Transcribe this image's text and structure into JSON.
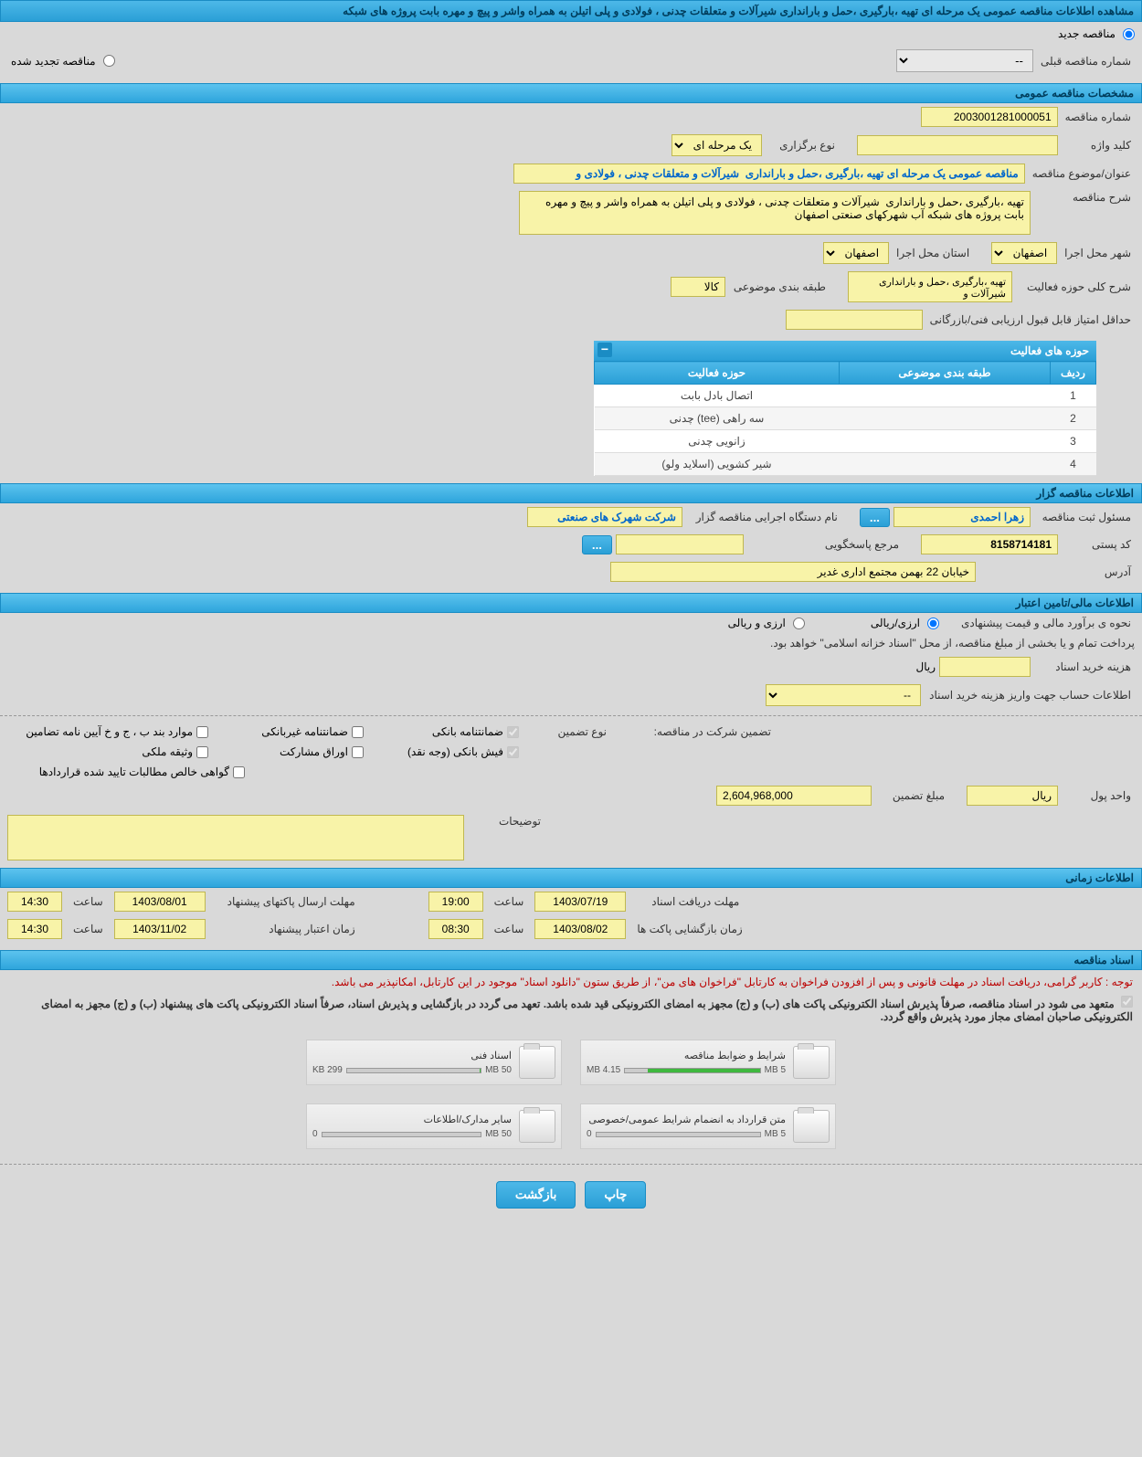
{
  "page_title": "مشاهده اطلاعات مناقصه عمومی یک مرحله ای تهیه ،بارگیری ،حمل و بارانداری شیرآلات و متعلقات چدنی ، فولادی و پلی اتیلن به همراه واشر و پیچ و مهره بابت پروژه های شبکه",
  "tender_type": {
    "new": "مناقصه جدید",
    "renewed": "مناقصه تجدید شده",
    "prev_number_label": "شماره مناقصه قبلی",
    "prev_number_value": "--"
  },
  "sections": {
    "general": "مشخصات مناقصه عمومی",
    "organizer": "اطلاعات مناقصه گزار",
    "financial": "اطلاعات مالی/تامین اعتبار",
    "time": "اطلاعات زمانی",
    "docs": "اسناد مناقصه"
  },
  "general": {
    "tender_no_label": "شماره مناقصه",
    "tender_no": "2003001281000051",
    "type_label": "نوع برگزاری",
    "type": "یک مرحله ای",
    "keyword_label": "کلید واژه",
    "keyword": "",
    "subject_label": "عنوان/موضوع مناقصه",
    "subject": "مناقصه عمومی یک مرحله ای تهیه ،بارگیری ،حمل و بارانداری  شیرآلات و متعلقات چدنی ، فولادی و",
    "desc_label": "شرح مناقصه",
    "desc": "تهیه ،بارگیری ،حمل و بارانداری  شیرآلات و متعلقات چدنی ، فولادی و پلی اتیلن به همراه واشر و پیچ و مهره بابت پروژه های شبکه آب شهرکهای صنعتی اصفهان",
    "province_label": "استان محل اجرا",
    "province": "اصفهان",
    "city_label": "شهر محل اجرا",
    "city": "اصفهان",
    "class_label": "طبقه بندی موضوعی",
    "class": "کالا",
    "activity_desc_label": "شرح کلی حوزه فعالیت",
    "activity_desc": "تهیه ،بارگیری ،حمل و بارانداری  شیرآلات و",
    "min_score_label": "حداقل امتیاز قابل قبول ارزیابی فنی/بازرگانی",
    "min_score": ""
  },
  "activity_table": {
    "title": "حوزه های فعالیت",
    "col_row": "ردیف",
    "col_class": "طبقه بندی موضوعی",
    "col_activity": "حوزه فعالیت",
    "rows": [
      {
        "n": "1",
        "c": "",
        "a": "اتصال بادل بابت"
      },
      {
        "n": "2",
        "c": "",
        "a": "سه راهی (tee) چدنی"
      },
      {
        "n": "3",
        "c": "",
        "a": "زانویی چدنی"
      },
      {
        "n": "4",
        "c": "",
        "a": "شیر کشویی (اسلاید ولو)"
      }
    ]
  },
  "organizer": {
    "org_label": "نام دستگاه اجرایی مناقصه گزار",
    "org": "شرکت شهرک های صنعتی",
    "resp_label": "مسئول ثبت مناقصه",
    "resp": "زهرا احمدی",
    "contact_label": "مرجع پاسخگویی",
    "contact": "",
    "postal_label": "کد پستی",
    "postal": "8158714181",
    "address_label": "آدرس",
    "address": "خیابان 22 بهمن مجتمع اداری غدیر"
  },
  "financial": {
    "estimate_label": "نحوه ی برآورد مالی و قیمت پیشنهادی",
    "opt_currency": "ارزی/ریالی",
    "opt_rial": "ارزی و ریالی",
    "payment_note": "پرداخت تمام و یا بخشی از مبلغ مناقصه، از محل \"اسناد خزانه اسلامی\" خواهد بود.",
    "doc_fee_label": "هزینه خرید اسناد",
    "doc_fee": "",
    "currency": "ریال",
    "account_label": "اطلاعات حساب جهت واریز هزینه خرید اسناد",
    "account": "--",
    "guarantee_type_label": "تضمین شرکت در مناقصه:",
    "guarantee_type_sublabel": "نوع تضمین",
    "guarantees": {
      "bank": "ضمانتنامه بانکی",
      "nonbank": "ضمانتنامه غیربانکی",
      "bond": "موارد بند ب ، ج و خ آیین نامه تضامین",
      "cash": "فیش بانکی (وجه نقد)",
      "securities": "اوراق مشارکت",
      "property": "وثیقه ملکی",
      "cert": "گواهی خالص مطالبات تایید شده قراردادها"
    },
    "guarantee_amount_label": "مبلغ تضمین",
    "guarantee_amount": "2,604,968,000",
    "unit_label": "واحد پول",
    "unit": "ریال",
    "notes_label": "توضیحات",
    "notes": ""
  },
  "time": {
    "receive_label": "مهلت دریافت اسناد",
    "receive_date": "1403/07/19",
    "receive_time": "19:00",
    "send_label": "مهلت ارسال پاکتهای پیشنهاد",
    "send_date": "1403/08/01",
    "send_time": "14:30",
    "open_label": "زمان بازگشایی پاکت ها",
    "open_date": "1403/08/02",
    "open_time": "08:30",
    "valid_label": "زمان اعتبار پیشنهاد",
    "valid_date": "1403/11/02",
    "valid_time": "14:30",
    "time_label": "ساعت"
  },
  "docs": {
    "notice": "توجه : کاربر گرامی، دریافت اسناد در مهلت قانونی و پس از افزودن فراخوان به کارتابل \"فراخوان های من\"، از طریق ستون \"دانلود اسناد\" موجود در این کارتابل، امکانپذیر می باشد.",
    "commit": "متعهد می شود در اسناد مناقصه، صرفاً پذیرش اسناد الکترونیکی پاکت های (ب) و (ج) مجهز به امضای الکترونیکی قید شده باشد. تعهد می گردد در بازگشایی و پذیرش اسناد، صرفاً اسناد الکترونیکی پاکت های پیشنهاد (ب) و (ج) مجهز به امضای الکترونیکی صاحبان امضای مجاز مورد پذیرش واقع گردد.",
    "files": [
      {
        "title": "شرایط و ضوابط مناقصه",
        "size": "4.15 MB",
        "max": "5 MB",
        "pct": 83
      },
      {
        "title": "اسناد فنی",
        "size": "299 KB",
        "max": "50 MB",
        "pct": 1
      },
      {
        "title": "متن قرارداد به انضمام شرایط عمومی/خصوصی",
        "size": "0",
        "max": "5 MB",
        "pct": 0
      },
      {
        "title": "سایر مدارک/اطلاعات",
        "size": "0",
        "max": "50 MB",
        "pct": 0
      }
    ]
  },
  "buttons": {
    "print": "چاپ",
    "back": "بازگشت"
  }
}
